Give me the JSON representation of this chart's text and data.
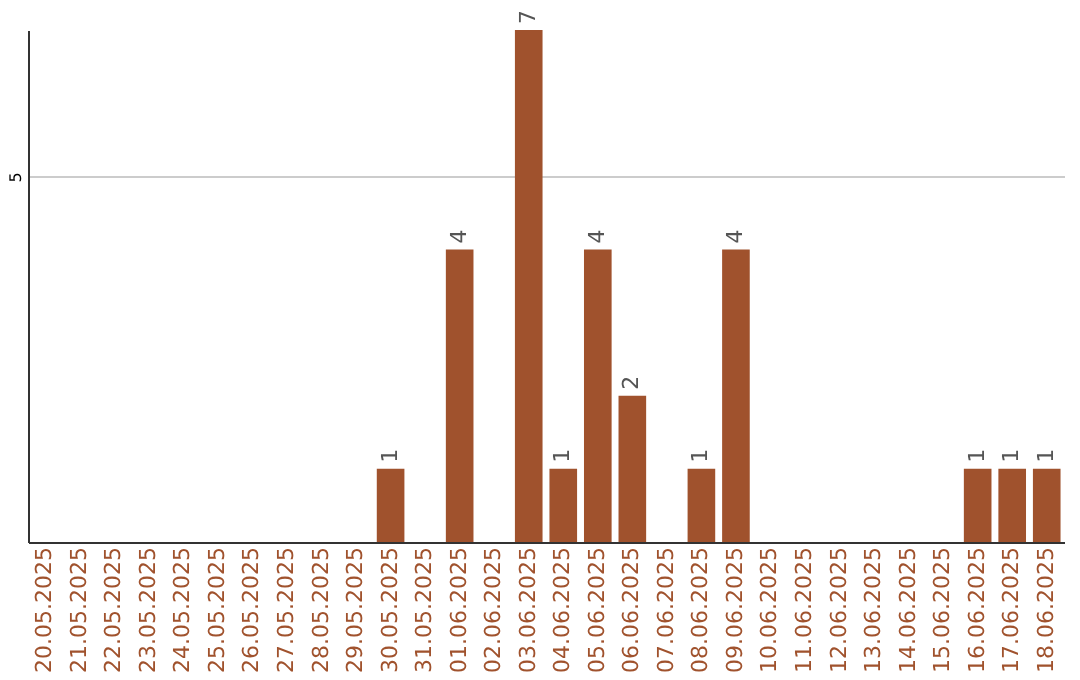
{
  "chart_data": {
    "type": "bar",
    "categories": [
      "20.05.2025",
      "21.05.2025",
      "22.05.2025",
      "23.05.2025",
      "24.05.2025",
      "25.05.2025",
      "26.05.2025",
      "27.05.2025",
      "28.05.2025",
      "29.05.2025",
      "30.05.2025",
      "31.05.2025",
      "01.06.2025",
      "02.06.2025",
      "03.06.2025",
      "04.06.2025",
      "05.06.2025",
      "06.06.2025",
      "07.06.2025",
      "08.06.2025",
      "09.06.2025",
      "10.06.2025",
      "11.06.2025",
      "12.06.2025",
      "13.06.2025",
      "14.06.2025",
      "15.06.2025",
      "16.06.2025",
      "17.06.2025",
      "18.06.2025"
    ],
    "values": [
      0,
      0,
      0,
      0,
      0,
      0,
      0,
      0,
      0,
      0,
      1,
      0,
      4,
      0,
      7,
      1,
      4,
      2,
      0,
      1,
      4,
      0,
      0,
      0,
      0,
      0,
      0,
      1,
      1,
      1
    ],
    "value_labels": [
      null,
      null,
      null,
      null,
      null,
      null,
      null,
      null,
      null,
      null,
      "1",
      null,
      "4",
      null,
      "7",
      "1",
      "4",
      "2",
      null,
      "1",
      "4",
      null,
      null,
      null,
      null,
      null,
      null,
      "1",
      "1",
      "1"
    ],
    "color": "#a0522d",
    "ylim": [
      0,
      7
    ],
    "yticks": [
      5
    ],
    "grid": "y"
  }
}
